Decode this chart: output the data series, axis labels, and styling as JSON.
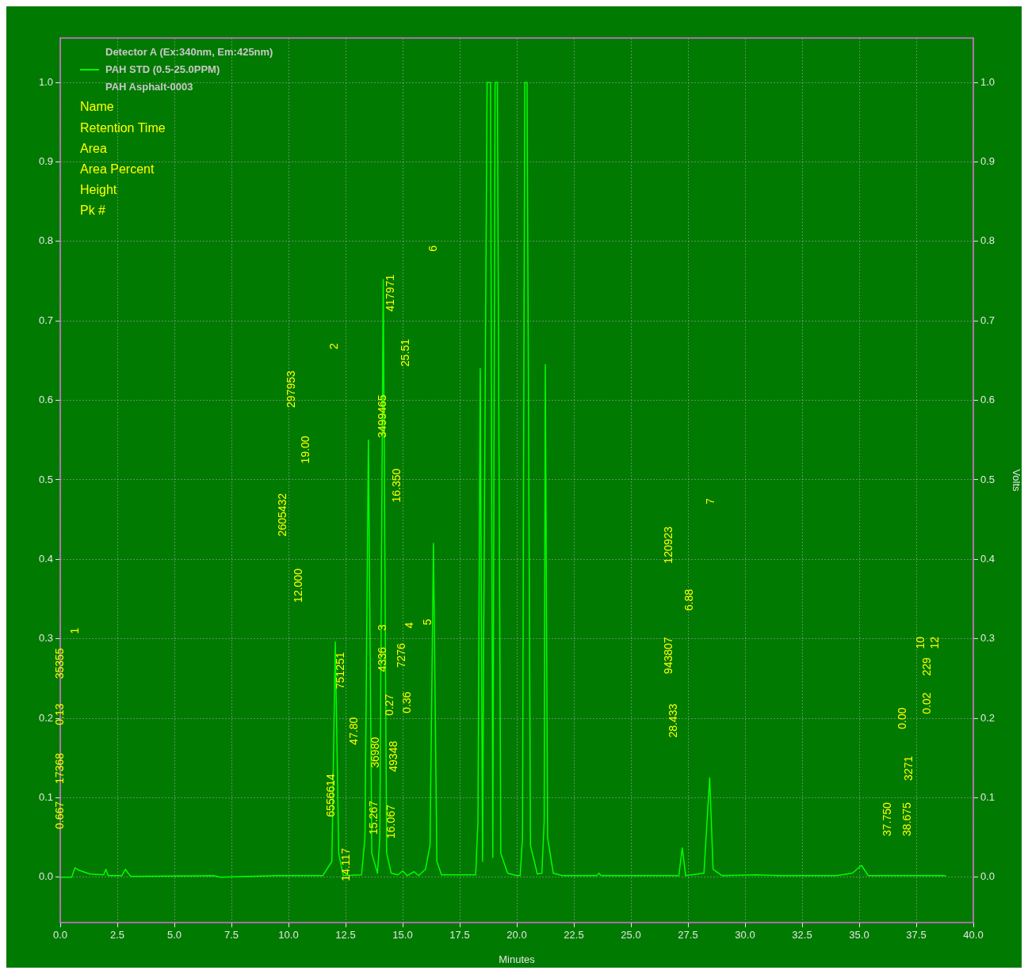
{
  "chart_data": {
    "type": "line",
    "subtitle": "PAH Asphalt-0003",
    "xlabel": "Minutes",
    "y2label": "Volts",
    "legend_title": "Detector A (Ex:340nm, Em:425nm)",
    "legend": "top left",
    "grid": true,
    "marker": "none",
    "line_style": "solid",
    "xlim": [
      0,
      40
    ],
    "xticks": [
      {
        "value": 0,
        "label": "0.0"
      },
      {
        "value": 2.5,
        "label": "2.5"
      },
      {
        "value": 5,
        "label": "5.0"
      },
      {
        "value": 7.5,
        "label": "7.5"
      },
      {
        "value": 10,
        "label": "10.0"
      },
      {
        "value": 12.5,
        "label": "12.5"
      },
      {
        "value": 15,
        "label": "15.0"
      },
      {
        "value": 17.5,
        "label": "17.5"
      },
      {
        "value": 20,
        "label": "20.0"
      },
      {
        "value": 22.5,
        "label": "22.5"
      },
      {
        "value": 25,
        "label": "25.0"
      },
      {
        "value": 27.5,
        "label": "27.5"
      },
      {
        "value": 30,
        "label": "30.0"
      },
      {
        "value": 32.5,
        "label": "32.5"
      },
      {
        "value": 35,
        "label": "35.0"
      },
      {
        "value": 37.5,
        "label": "37.5"
      },
      {
        "value": 40,
        "label": "40.0"
      }
    ],
    "ylim": [
      -0.057,
      1.056
    ],
    "yticks": [
      {
        "value": 0,
        "label": "0.0"
      },
      {
        "value": 0.1,
        "label": "0.1"
      },
      {
        "value": 0.2,
        "label": "0.2"
      },
      {
        "value": 0.3,
        "label": "0.3"
      },
      {
        "value": 0.4,
        "label": "0.4"
      },
      {
        "value": 0.5,
        "label": "0.5"
      },
      {
        "value": 0.6,
        "label": "0.6"
      },
      {
        "value": 0.7,
        "label": "0.7"
      },
      {
        "value": 0.8,
        "label": "0.8"
      },
      {
        "value": 0.9,
        "label": "0.9"
      },
      {
        "value": 1,
        "label": "1.0"
      }
    ],
    "y2lim": [
      -0.057,
      1.056
    ],
    "y2ticks": [
      {
        "value": 0,
        "label": "0.0"
      },
      {
        "value": 0.1,
        "label": "0.1"
      },
      {
        "value": 0.2,
        "label": "0.2"
      },
      {
        "value": 0.3,
        "label": "0.3"
      },
      {
        "value": 0.4,
        "label": "0.4"
      },
      {
        "value": 0.5,
        "label": "0.5"
      },
      {
        "value": 0.6,
        "label": "0.6"
      },
      {
        "value": 0.7,
        "label": "0.7"
      },
      {
        "value": 0.8,
        "label": "0.8"
      },
      {
        "value": 0.9,
        "label": "0.9"
      },
      {
        "value": 1,
        "label": "1.0"
      }
    ],
    "x": [
      0,
      0.5,
      0.65,
      0.8,
      1.0,
      1.3,
      1.9,
      2.0,
      2.1,
      2.7,
      2.85,
      3.0,
      3.1,
      6.7,
      7.0,
      9.5,
      11.5,
      11.9,
      12.05,
      12.2,
      12.4,
      13.2,
      13.35,
      13.5,
      13.65,
      13.9,
      14.0,
      14.15,
      14.3,
      14.5,
      14.8,
      15.0,
      15.2,
      15.5,
      15.7,
      16.0,
      16.2,
      16.35,
      16.5,
      16.7,
      18.2,
      18.3,
      18.4,
      18.5,
      18.55,
      18.7,
      18.85,
      18.95,
      19.05,
      19.15,
      19.3,
      19.6,
      20.0,
      20.15,
      20.25,
      20.35,
      20.45,
      20.6,
      20.9,
      21.1,
      21.2,
      21.25,
      21.35,
      21.6,
      22.0,
      23.5,
      23.6,
      23.7,
      27.1,
      27.25,
      27.4,
      28.2,
      28.45,
      28.6,
      28.75,
      29.0,
      30.5,
      31.5,
      34.0,
      34.7,
      35.1,
      35.4,
      38.8
    ],
    "series": [
      {
        "name": "PAH STD (0.5-25.0PPM)",
        "color": "#00ff00",
        "values": [
          0,
          0,
          0.012,
          0.009,
          0.007,
          0.004,
          0.003,
          0.01,
          0.002,
          0.002,
          0.01,
          0.004,
          0.001,
          0.002,
          0,
          0.002,
          0.002,
          0.02,
          0.296,
          0.03,
          0.002,
          0.003,
          0.05,
          0.55,
          0.03,
          0.005,
          0.05,
          0.752,
          0.03,
          0.005,
          0.003,
          0.008,
          0.002,
          0.007,
          0.002,
          0.01,
          0.04,
          0.42,
          0.02,
          0.003,
          0.003,
          0.07,
          0.64,
          0.02,
          0.3,
          1.0,
          1.0,
          0.025,
          1.0,
          1.0,
          0.03,
          0.005,
          0.002,
          0.002,
          0.05,
          1.0,
          1.0,
          0.04,
          0.004,
          0.005,
          0.07,
          0.645,
          0.05,
          0.005,
          0.002,
          0.002,
          0.005,
          0.002,
          0.002,
          0.037,
          0.002,
          0.005,
          0.125,
          0.01,
          0.007,
          0.002,
          0.003,
          0.002,
          0.002,
          0.005,
          0.015,
          0.002,
          0.002
        ]
      }
    ],
    "annotations": [
      "Name",
      "Retention Time",
      "Area",
      "Area Percent",
      "Height",
      "Pk #",
      "1",
      "35355",
      "0.13",
      "17368",
      "0.667",
      "2",
      "297953",
      "19.00",
      "2605432",
      "12.000",
      "751251",
      "47.80",
      "6556614",
      "14.117",
      "3",
      "417971",
      "25.51",
      "3499465",
      "16.350",
      "4336",
      "0.27",
      "36980",
      "49348",
      "15.267",
      "16.067",
      "4",
      "7276",
      "0.36",
      "5",
      "6",
      "7",
      "120923",
      "6.88",
      "943807",
      "28.433",
      "37.750",
      "38.675",
      "3271",
      "0.00",
      "0.02",
      "229",
      "10",
      "12"
    ]
  }
}
